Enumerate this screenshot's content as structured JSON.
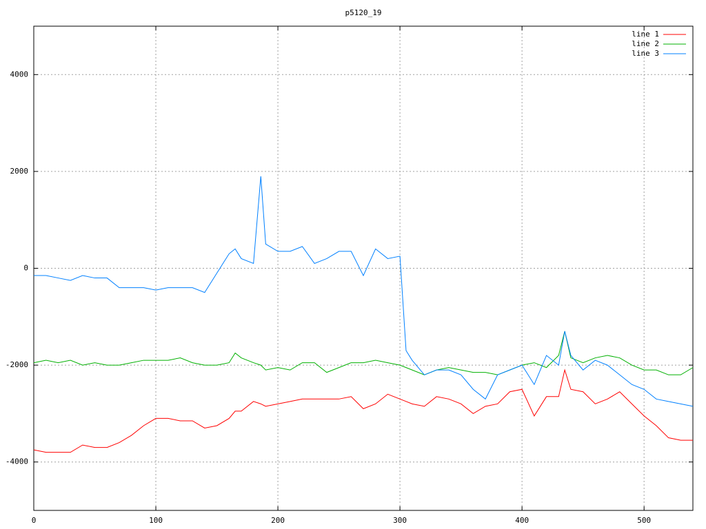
{
  "chart_data": {
    "type": "line",
    "title": "p5120_19",
    "x": [
      0,
      10,
      20,
      30,
      40,
      50,
      60,
      70,
      80,
      90,
      100,
      110,
      120,
      130,
      140,
      150,
      160,
      165,
      170,
      180,
      186,
      190,
      200,
      210,
      220,
      230,
      240,
      250,
      260,
      270,
      280,
      290,
      300,
      305,
      310,
      320,
      330,
      340,
      350,
      360,
      370,
      380,
      390,
      400,
      410,
      420,
      430,
      435,
      440,
      450,
      460,
      470,
      480,
      490,
      500,
      510,
      520,
      530,
      540
    ],
    "series": [
      {
        "name": "line 1",
        "color": "#ff0000",
        "values": [
          -3750,
          -3800,
          -3800,
          -3800,
          -3650,
          -3700,
          -3700,
          -3600,
          -3450,
          -3250,
          -3100,
          -3100,
          -3150,
          -3150,
          -3300,
          -3250,
          -3100,
          -2950,
          -2950,
          -2750,
          -2800,
          -2850,
          -2800,
          -2750,
          -2700,
          -2700,
          -2700,
          -2700,
          -2650,
          -2900,
          -2800,
          -2600,
          -2700,
          -2750,
          -2800,
          -2850,
          -2650,
          -2700,
          -2800,
          -3000,
          -2850,
          -2800,
          -2550,
          -2500,
          -3050,
          -2650,
          -2650,
          -2100,
          -2500,
          -2550,
          -2800,
          -2700,
          -2550,
          -2800,
          -3050,
          -3250,
          -3500,
          -3550,
          -3550
        ]
      },
      {
        "name": "line 2",
        "color": "#00b000",
        "values": [
          -1950,
          -1900,
          -1950,
          -1900,
          -2000,
          -1950,
          -2000,
          -2000,
          -1950,
          -1900,
          -1900,
          -1900,
          -1850,
          -1950,
          -2000,
          -2000,
          -1950,
          -1750,
          -1850,
          -1950,
          -2000,
          -2100,
          -2050,
          -2100,
          -1950,
          -1950,
          -2150,
          -2050,
          -1950,
          -1950,
          -1900,
          -1950,
          -2000,
          -2050,
          -2100,
          -2200,
          -2100,
          -2050,
          -2100,
          -2150,
          -2150,
          -2200,
          -2100,
          -2000,
          -1950,
          -2050,
          -1800,
          -1300,
          -1850,
          -1950,
          -1850,
          -1800,
          -1850,
          -2000,
          -2100,
          -2100,
          -2200,
          -2200,
          -2050
        ]
      },
      {
        "name": "line 3",
        "color": "#0080ff",
        "values": [
          -150,
          -150,
          -200,
          -250,
          -150,
          -200,
          -200,
          -400,
          -400,
          -400,
          -450,
          -400,
          -400,
          -400,
          -500,
          -100,
          300,
          400,
          200,
          100,
          1900,
          500,
          350,
          350,
          450,
          100,
          200,
          350,
          350,
          -150,
          400,
          200,
          250,
          -1700,
          -1900,
          -2200,
          -2100,
          -2100,
          -2200,
          -2500,
          -2700,
          -2200,
          -2100,
          -2000,
          -2400,
          -1800,
          -2000,
          -1300,
          -1800,
          -2100,
          -1900,
          -2000,
          -2200,
          -2400,
          -2500,
          -2700,
          -2750,
          -2800,
          -2850
        ]
      }
    ],
    "xlim": [
      0,
      540
    ],
    "xticks": [
      0,
      100,
      200,
      300,
      400,
      500
    ],
    "ylim": [
      -5000,
      5000
    ],
    "yticks": [
      -4000,
      -2000,
      0,
      2000,
      4000
    ],
    "grid": true,
    "legend": "top-right"
  }
}
